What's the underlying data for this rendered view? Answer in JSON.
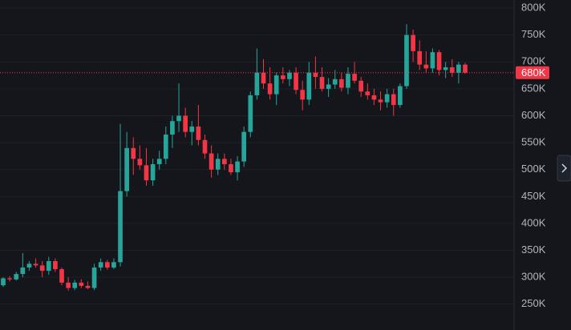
{
  "chart_data": {
    "type": "candlestick",
    "open": [
      285,
      298,
      296,
      306,
      318,
      325,
      322,
      312,
      330,
      315,
      290,
      280,
      290,
      284,
      280,
      318,
      328,
      318,
      328,
      460,
      540,
      520,
      508,
      480,
      510,
      520,
      565,
      590,
      600,
      570,
      580,
      555,
      530,
      500,
      520,
      510,
      495,
      515,
      570,
      638,
      680,
      660,
      640,
      675,
      668,
      680,
      648,
      630,
      680,
      672,
      650,
      658,
      668,
      652,
      678,
      665,
      645,
      638,
      630,
      625,
      640,
      620,
      655,
      750,
      720,
      695,
      688,
      718,
      685,
      690,
      680,
      695
    ],
    "high": [
      300,
      302,
      310,
      345,
      330,
      335,
      330,
      338,
      335,
      318,
      300,
      295,
      296,
      292,
      325,
      335,
      332,
      335,
      585,
      570,
      560,
      545,
      540,
      520,
      535,
      580,
      600,
      660,
      615,
      590,
      620,
      565,
      545,
      530,
      530,
      520,
      525,
      580,
      645,
      725,
      705,
      690,
      680,
      690,
      685,
      690,
      665,
      700,
      710,
      690,
      670,
      685,
      680,
      690,
      700,
      672,
      660,
      650,
      645,
      650,
      650,
      660,
      770,
      760,
      740,
      720,
      725,
      722,
      700,
      705,
      700,
      698
    ],
    "low": [
      282,
      292,
      294,
      300,
      312,
      318,
      300,
      305,
      310,
      285,
      275,
      276,
      280,
      278,
      276,
      312,
      314,
      315,
      320,
      450,
      490,
      500,
      470,
      470,
      500,
      510,
      540,
      570,
      560,
      545,
      545,
      520,
      485,
      490,
      500,
      490,
      480,
      505,
      560,
      630,
      650,
      630,
      620,
      660,
      655,
      640,
      610,
      620,
      650,
      645,
      635,
      650,
      645,
      640,
      660,
      635,
      630,
      620,
      610,
      615,
      600,
      615,
      650,
      700,
      685,
      680,
      680,
      675,
      670,
      672,
      660,
      678
    ],
    "close": [
      298,
      296,
      306,
      318,
      325,
      322,
      312,
      330,
      315,
      290,
      280,
      290,
      284,
      280,
      318,
      328,
      318,
      328,
      460,
      540,
      520,
      508,
      480,
      510,
      520,
      565,
      590,
      600,
      570,
      580,
      555,
      530,
      500,
      520,
      510,
      495,
      515,
      570,
      638,
      680,
      660,
      640,
      675,
      668,
      680,
      648,
      630,
      680,
      672,
      650,
      658,
      668,
      652,
      678,
      665,
      645,
      638,
      630,
      625,
      640,
      620,
      655,
      750,
      720,
      695,
      688,
      718,
      685,
      690,
      680,
      695,
      680
    ],
    "up_color": "#26a69a",
    "down_color": "#f23645",
    "ylim": [
      202,
      815
    ],
    "yticks": [
      {
        "value": 250,
        "label": "250K"
      },
      {
        "value": 300,
        "label": "300K"
      },
      {
        "value": 350,
        "label": "350K"
      },
      {
        "value": 400,
        "label": "400K"
      },
      {
        "value": 450,
        "label": "450K"
      },
      {
        "value": 500,
        "label": "500K"
      },
      {
        "value": 550,
        "label": "550K"
      },
      {
        "value": 600,
        "label": "600K"
      },
      {
        "value": 650,
        "label": "650K"
      },
      {
        "value": 700,
        "label": "700K"
      },
      {
        "value": 750,
        "label": "750K"
      },
      {
        "value": 800,
        "label": "800K"
      }
    ],
    "last_price": {
      "value": 680,
      "label": "680K"
    },
    "grid": true
  }
}
